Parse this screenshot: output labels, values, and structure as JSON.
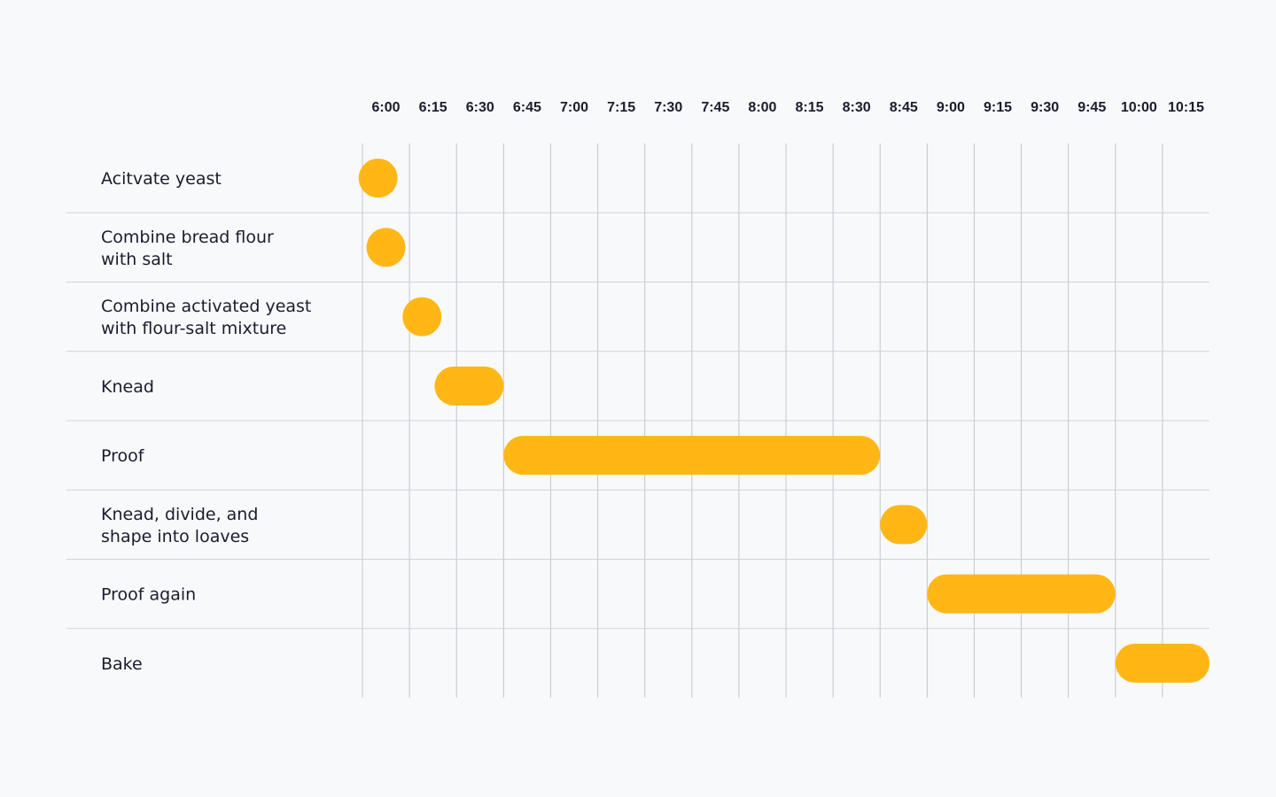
{
  "chart_data": {
    "type": "gantt",
    "time_axis": {
      "ticks": [
        "6:00",
        "6:15",
        "6:30",
        "6:45",
        "7:00",
        "7:15",
        "7:30",
        "7:45",
        "8:00",
        "8:15",
        "8:30",
        "8:45",
        "9:00",
        "9:15",
        "9:30",
        "9:45",
        "10:00",
        "10:15"
      ],
      "start": "6:00",
      "end": "10:30",
      "step_minutes": 15
    },
    "tasks": [
      {
        "lines": [
          "Acitvate yeast"
        ],
        "start": "6:00",
        "end": "6:10"
      },
      {
        "lines": [
          "Combine bread flour",
          "with salt"
        ],
        "start": "6:03",
        "end": "6:12"
      },
      {
        "lines": [
          "Combine activated yeast",
          "with flour-salt mixture"
        ],
        "start": "6:15",
        "end": "6:23"
      },
      {
        "lines": [
          "Knead"
        ],
        "start": "6:23",
        "end": "6:45"
      },
      {
        "lines": [
          "Proof"
        ],
        "start": "6:45",
        "end": "8:45"
      },
      {
        "lines": [
          "Knead, divide, and",
          "shape into loaves"
        ],
        "start": "8:45",
        "end": "9:00"
      },
      {
        "lines": [
          "Proof again"
        ],
        "start": "9:00",
        "end": "10:00"
      },
      {
        "lines": [
          "Bake"
        ],
        "start": "10:00",
        "end": "10:30"
      }
    ],
    "grid": true,
    "bar_color": "#ffb716"
  }
}
